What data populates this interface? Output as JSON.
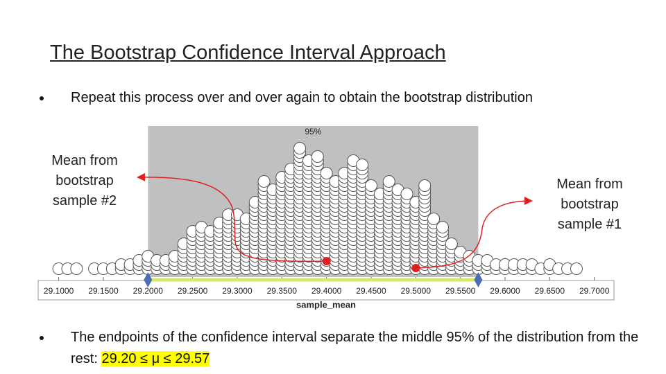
{
  "slide": {
    "title": "The Bootstrap Confidence Interval Approach",
    "bullet1": "Repeat this process over and over again to obtain the bootstrap distribution",
    "bullet2": "The endpoints of the confidence interval separate the middle 95% of the distribution from the rest:",
    "bullet2_highlight": "29.20 ≤ μ ≤ 29.57"
  },
  "chart_data": {
    "type": "dotplot",
    "xlabel": "sample_mean",
    "x": [
      29.1,
      29.11,
      29.12,
      29.13,
      29.14,
      29.15,
      29.16,
      29.17,
      29.18,
      29.19,
      29.2,
      29.21,
      29.22,
      29.23,
      29.24,
      29.25,
      29.26,
      29.27,
      29.28,
      29.29,
      29.3,
      29.31,
      29.32,
      29.33,
      29.34,
      29.35,
      29.36,
      29.37,
      29.38,
      29.39,
      29.4,
      29.41,
      29.42,
      29.43,
      29.44,
      29.45,
      29.46,
      29.47,
      29.48,
      29.49,
      29.5,
      29.51,
      29.52,
      29.53,
      29.54,
      29.55,
      29.56,
      29.57,
      29.58,
      29.59,
      29.6,
      29.61,
      29.62,
      29.63,
      29.64,
      29.65,
      29.66,
      29.67,
      29.68,
      29.69
    ],
    "values": [
      1,
      1,
      1,
      0,
      1,
      1,
      1,
      2,
      2,
      3,
      4,
      3,
      3,
      4,
      7,
      10,
      11,
      10,
      12,
      14,
      14,
      13,
      17,
      22,
      20,
      23,
      25,
      30,
      27,
      28,
      24,
      22,
      24,
      27,
      26,
      21,
      19,
      22,
      20,
      19,
      17,
      21,
      13,
      11,
      7,
      5,
      4,
      3,
      3,
      2,
      2,
      2,
      2,
      2,
      1,
      2,
      1,
      1,
      1,
      0
    ],
    "xlim": [
      29.077,
      29.722
    ],
    "xticks": [
      {
        "value": 29.1,
        "label": "29.1000"
      },
      {
        "value": 29.15,
        "label": "29.1500"
      },
      {
        "value": 29.2,
        "label": "29.2000"
      },
      {
        "value": 29.25,
        "label": "29.2500"
      },
      {
        "value": 29.3,
        "label": "29.3000"
      },
      {
        "value": 29.35,
        "label": "29.3500"
      },
      {
        "value": 29.4,
        "label": "29.4000"
      },
      {
        "value": 29.45,
        "label": "29.4500"
      },
      {
        "value": 29.5,
        "label": "29.5000"
      },
      {
        "value": 29.55,
        "label": "29.5500"
      },
      {
        "value": 29.6,
        "label": "29.6000"
      },
      {
        "value": 29.65,
        "label": "29.6500"
      },
      {
        "value": 29.7,
        "label": "29.7000"
      }
    ],
    "interval": [
      29.2,
      29.57
    ],
    "interval_label": "95%",
    "annotations": [
      {
        "text": "Mean from bootstrap sample #2",
        "x": 29.4
      },
      {
        "text": "Mean from bootstrap sample #1",
        "x": 29.5
      }
    ]
  }
}
